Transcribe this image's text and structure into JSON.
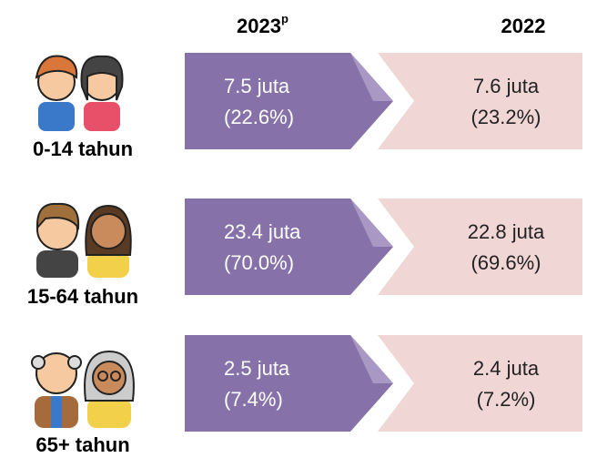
{
  "headers": {
    "current": "2023",
    "current_sup": "p",
    "previous": "2022"
  },
  "rows": [
    {
      "label": "0-14 tahun",
      "current": {
        "amount": "7.5 juta",
        "share": "(22.6%)"
      },
      "previous": {
        "amount": "7.6 juta",
        "share": "(23.2%)"
      }
    },
    {
      "label": "15-64 tahun",
      "current": {
        "amount": "23.4 juta",
        "share": "(70.0%)"
      },
      "previous": {
        "amount": "22.8 juta",
        "share": "(69.6%)"
      }
    },
    {
      "label": "65+ tahun",
      "current": {
        "amount": "2.5 juta",
        "share": "(7.4%)"
      },
      "previous": {
        "amount": "2.4 juta",
        "share": "(7.2%)"
      }
    }
  ]
}
